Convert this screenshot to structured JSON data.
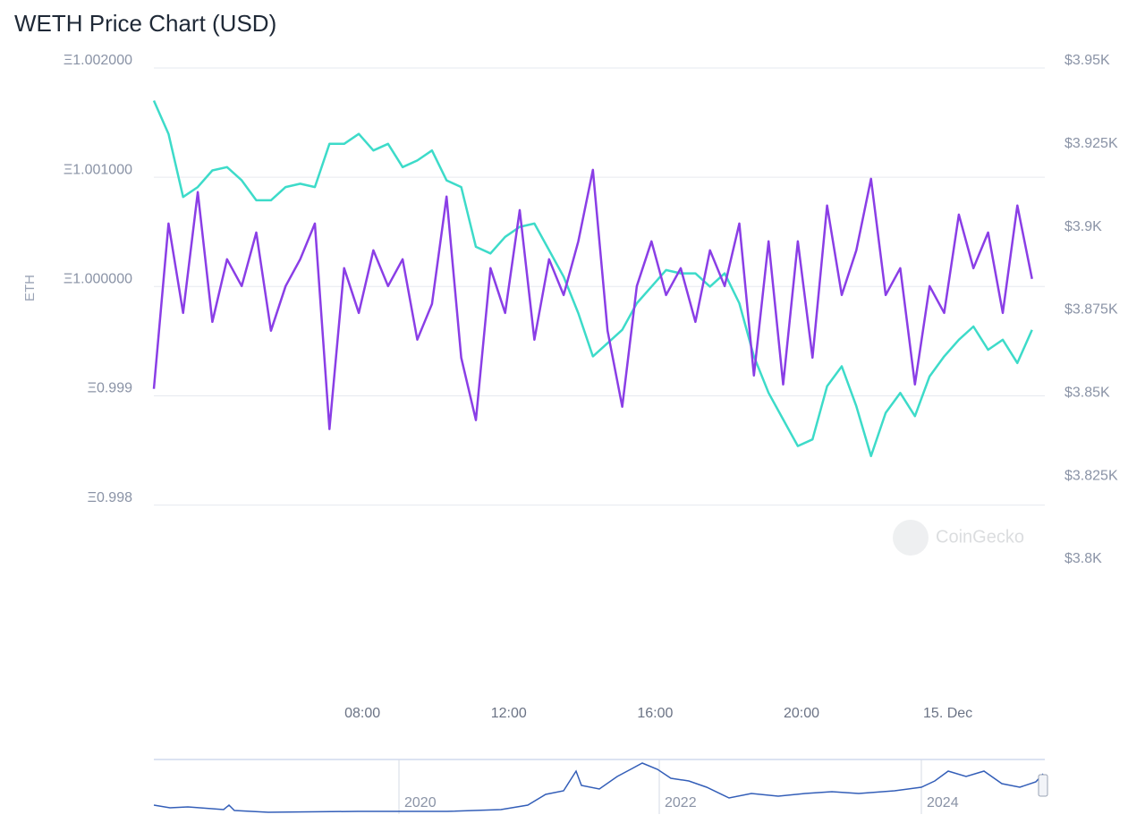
{
  "chart_data": {
    "type": "line",
    "title": "WETH Price Chart (USD)",
    "y_label": "ETH",
    "watermark": "CoinGecko",
    "x": [
      2.3,
      2.7,
      3.1,
      3.5,
      3.9,
      4.3,
      4.7,
      5.1,
      5.5,
      5.9,
      6.3,
      6.7,
      7.1,
      7.5,
      7.9,
      8.3,
      8.7,
      9.1,
      9.5,
      9.9,
      10.3,
      10.7,
      11.1,
      11.5,
      11.9,
      12.3,
      12.7,
      13.1,
      13.5,
      13.9,
      14.3,
      14.7,
      15.1,
      15.5,
      15.9,
      16.3,
      16.7,
      17.1,
      17.5,
      17.9,
      18.3,
      18.7,
      19.1,
      19.5,
      19.9,
      20.3,
      20.7,
      21.1,
      21.5,
      21.9,
      22.3,
      22.7,
      23.1,
      23.5,
      23.9,
      24.3,
      24.7,
      25.1,
      25.5,
      25.9,
      26.3
    ],
    "xlim": [
      2.3,
      26.65
    ],
    "xticks": [
      {
        "value": 8,
        "label": "08:00"
      },
      {
        "value": 12,
        "label": "12:00"
      },
      {
        "value": 16,
        "label": "16:00"
      },
      {
        "value": 20,
        "label": "20:00"
      },
      {
        "value": 24,
        "label": "15. Dec"
      }
    ],
    "ylim": [
      0.99735,
      1.002
    ],
    "yticks": [
      {
        "value": 1.002,
        "label": "Ξ1.002000"
      },
      {
        "value": 1.001,
        "label": "Ξ1.001000"
      },
      {
        "value": 1.0,
        "label": "Ξ1.000000"
      },
      {
        "value": 0.999,
        "label": "Ξ0.999"
      },
      {
        "value": 0.998,
        "label": "Ξ0.998"
      }
    ],
    "y2lim": [
      3797,
      3950
    ],
    "y2ticks": [
      {
        "value": 3950,
        "label": "$3.95K"
      },
      {
        "value": 3925,
        "label": "$3.925K"
      },
      {
        "value": 3900,
        "label": "$3.9K"
      },
      {
        "value": 3875,
        "label": "$3.875K"
      },
      {
        "value": 3850,
        "label": "$3.85K"
      },
      {
        "value": 3825,
        "label": "$3.825K"
      },
      {
        "value": 3800,
        "label": "$3.8K"
      }
    ],
    "grid": true,
    "series": [
      {
        "color": "#3ddbc9",
        "axis": "y2",
        "values": [
          3938,
          3928,
          3909,
          3912,
          3917,
          3918,
          3914,
          3908,
          3908,
          3912,
          3913,
          3912,
          3925,
          3925,
          3928,
          3923,
          3925,
          3918,
          3920,
          3923,
          3914,
          3912,
          3894,
          3892,
          3897,
          3900,
          3901,
          3893,
          3885,
          3874,
          3861,
          3865,
          3869,
          3877,
          3882,
          3887,
          3886,
          3886,
          3882,
          3886,
          3877,
          3861,
          3850,
          3842,
          3834,
          3836,
          3852,
          3858,
          3846,
          3831,
          3844,
          3850,
          3843,
          3855,
          3861,
          3866,
          3870,
          3863,
          3866,
          3859,
          3869
        ]
      },
      {
        "color": "#8a3ee6",
        "values": [
          0.998998,
          1.000511,
          0.999693,
          1.000798,
          0.999611,
          1.000184,
          0.999939,
          1.000429,
          0.99953,
          0.999939,
          1.000184,
          1.000511,
          0.99863,
          1.000102,
          0.999693,
          1.000266,
          0.999939,
          1.000184,
          0.999448,
          0.999775,
          1.000757,
          0.999284,
          0.998712,
          1.000102,
          0.999693,
          1.000634,
          0.999448,
          1.000184,
          0.999857,
          1.000348,
          1.001002,
          0.99953,
          0.998834,
          0.999939,
          1.000348,
          0.999857,
          1.000102,
          0.999611,
          1.000266,
          0.999939,
          1.000511,
          0.999121,
          1.000348,
          0.999039,
          1.000348,
          0.999284,
          1.000675,
          0.999857,
          1.000266,
          1.00092,
          0.999857,
          1.000102,
          0.999039,
          0.999939,
          0.999693,
          1.000593,
          1.000102,
          1.000429,
          0.999693,
          1.000675,
          1.000004
        ]
      }
    ]
  },
  "navigator": {
    "labels": [
      "2020",
      "2022",
      "2024"
    ]
  }
}
